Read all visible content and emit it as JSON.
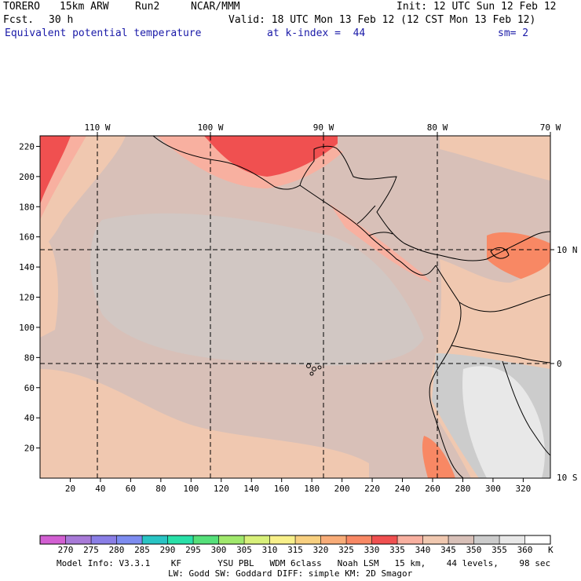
{
  "header": {
    "model": "TORERO",
    "resolution": "15km ARW",
    "run": "Run2",
    "org": "NCAR/MMM",
    "init": "Init: 12 UTC Sun 12 Feb 12",
    "fcst_label": "Fcst.",
    "fcst_value": "30 h",
    "valid": "Valid: 18 UTC Mon 13 Feb 12 (12 CST Mon 13 Feb 12)",
    "field": "Equivalent potential temperature",
    "level": "at k-index =  44",
    "smooth": "sm= 2"
  },
  "map": {
    "lon_labels": [
      "110 W",
      "100 W",
      "90 W",
      "80 W",
      "70 W"
    ],
    "lat_labels": [
      "10 N",
      "0",
      "10 S"
    ],
    "y_ticks": [
      "220",
      "200",
      "180",
      "160",
      "140",
      "120",
      "100",
      "80",
      "60",
      "40",
      "20"
    ],
    "x_ticks": [
      "20",
      "40",
      "60",
      "80",
      "100",
      "120",
      "140",
      "160",
      "180",
      "200",
      "220",
      "240",
      "260",
      "280",
      "300",
      "320"
    ]
  },
  "colorbar": {
    "labels": [
      "270",
      "275",
      "280",
      "285",
      "290",
      "295",
      "300",
      "305",
      "310",
      "315",
      "320",
      "325",
      "330",
      "335",
      "340",
      "345",
      "350",
      "355",
      "360"
    ],
    "unit": "K",
    "colors": [
      "#d25fd2",
      "#a87ad8",
      "#8a7ee6",
      "#7d8cf0",
      "#29c4c4",
      "#29e0a8",
      "#55e07a",
      "#a0e86c",
      "#d8f07a",
      "#f8f08a",
      "#f8d080",
      "#f8ac78",
      "#f88864",
      "#f05050",
      "#f8b0a0",
      "#f0c8b0",
      "#d8c0b8",
      "#cccccc",
      "#e8e8e8",
      "#ffffff"
    ]
  },
  "footer": {
    "line1": "Model Info: V3.3.1    KF       YSU PBL   WDM 6class   Noah LSM   15 km,    44 levels,    98 sec",
    "line2": "LW: Godd SW: Goddard DIFF: simple KM: 2D Smagor"
  }
}
